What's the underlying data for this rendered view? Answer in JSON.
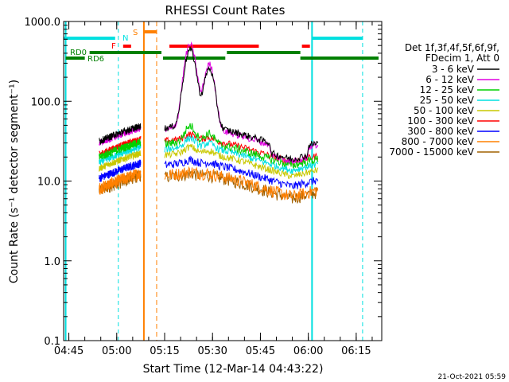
{
  "chart_data": {
    "type": "line",
    "title": "RHESSI Count Rates",
    "xlabel": "Start Time (12-Mar-14 04:43:22)",
    "ylabel": "Count Rate (s⁻¹ detector segment⁻¹)",
    "yscale": "log",
    "ylim": [
      0.1,
      1000.0
    ],
    "xlim": [
      "04:43:22",
      "06:23:00"
    ],
    "x_ticks": [
      "04:45",
      "05:00",
      "05:15",
      "05:30",
      "05:45",
      "06:00",
      "06:15"
    ],
    "y_ticks": [
      "0.1",
      "1.0",
      "10.0",
      "100.0",
      "1000.0"
    ],
    "legend_header": [
      "Det 1f,3f,4f,5f,6f,9f,",
      "FDecim 1, Att 0"
    ],
    "legend_position": "right",
    "series": [
      {
        "name": "3 - 6 keV",
        "color": "#000000"
      },
      {
        "name": "6 - 12 keV",
        "color": "#e000e0"
      },
      {
        "name": "12 - 25 keV",
        "color": "#00d000"
      },
      {
        "name": "25 - 50 keV",
        "color": "#00e0e0"
      },
      {
        "name": "50 - 100 keV",
        "color": "#c8c800"
      },
      {
        "name": "100 - 300 keV",
        "color": "#ff0000"
      },
      {
        "name": "300 - 800 keV",
        "color": "#0000ff"
      },
      {
        "name": "800 - 7000 keV",
        "color": "#ff8000"
      },
      {
        "name": "7000 - 15000 keV",
        "color": "#a06000"
      }
    ],
    "flag_labels": {
      "saa": "S",
      "night": "N",
      "flare": "F",
      "rd0": "RD0",
      "rd6": "RD6"
    },
    "footer_timestamp": "21-Oct-2021 05:59"
  }
}
